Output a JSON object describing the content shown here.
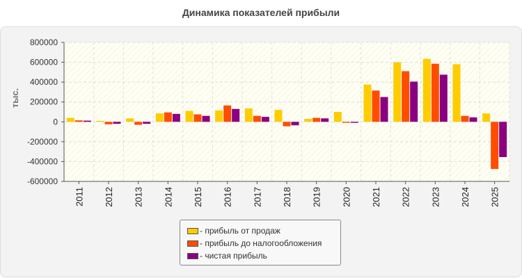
{
  "chart_data": {
    "type": "bar",
    "title": "Динамика показателей прибыли",
    "xlabel": "",
    "ylabel": "тыс.",
    "ylim": [
      -600000,
      800000
    ],
    "yticks": [
      -600000,
      -400000,
      -200000,
      0,
      200000,
      400000,
      600000,
      800000
    ],
    "grid": true,
    "legend_position": "bottom",
    "categories": [
      "2011",
      "2012",
      "2013",
      "2014",
      "2015",
      "2016",
      "2017",
      "2018",
      "2019",
      "2020",
      "2021",
      "2022",
      "2023",
      "2024",
      "2025"
    ],
    "series": [
      {
        "name": "- прибыль от продаж",
        "color": "#ffcc00",
        "values": [
          40000,
          10000,
          35000,
          85000,
          110000,
          115000,
          135000,
          120000,
          30000,
          100000,
          375000,
          600000,
          635000,
          580000,
          85000
        ]
      },
      {
        "name": "- прибыль до налогообложения",
        "color": "#ff4d00",
        "values": [
          15000,
          -25000,
          -30000,
          95000,
          75000,
          165000,
          60000,
          -45000,
          40000,
          -10000,
          315000,
          510000,
          585000,
          60000,
          -475000
        ]
      },
      {
        "name": "- чистая прибыль",
        "color": "#8b0080",
        "values": [
          12000,
          -20000,
          -20000,
          80000,
          60000,
          130000,
          50000,
          -35000,
          35000,
          -10000,
          250000,
          405000,
          475000,
          45000,
          -355000
        ]
      }
    ]
  }
}
